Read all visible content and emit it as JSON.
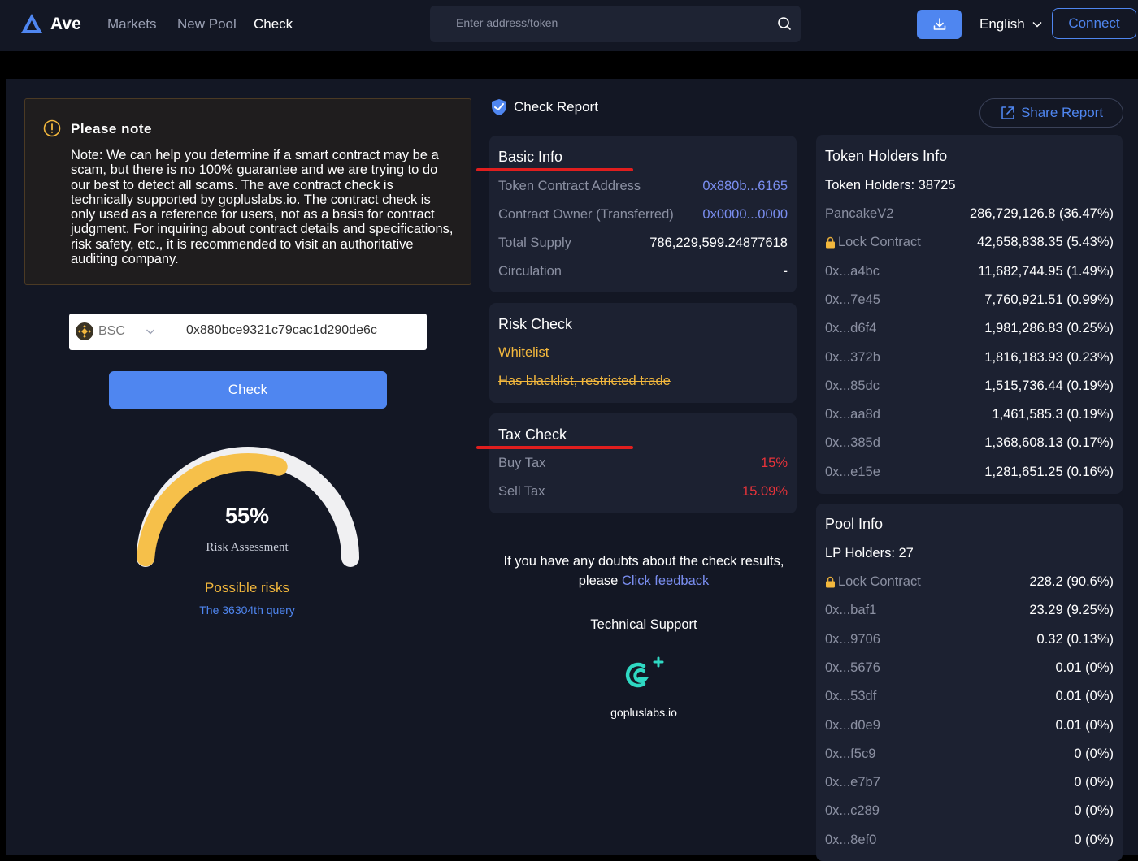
{
  "nav": {
    "brand": "Ave",
    "links": [
      "Markets",
      "New Pool",
      "Check"
    ],
    "search_placeholder": "Enter address/token",
    "language": "English",
    "connect": "Connect"
  },
  "note": {
    "title": "Please note",
    "body": "Note: We can help you determine if a smart contract may be a scam, but there is no 100% guarantee and we are trying to do our best to detect all scams. The ave contract check is technically supported by gopluslabs.io. The contract check is only used as a reference for users, not as a basis for contract judgment. For inquiring about contract details and specifications, risk safety, etc., it is recommended to visit an authoritative auditing company."
  },
  "query": {
    "chain": "BSC",
    "address": "0x880bce9321c79cac1d290de6c",
    "check_button": "Check"
  },
  "risk": {
    "percent_text": "55%",
    "percent": 55,
    "label": "Risk Assessment",
    "status": "Possible risks",
    "query_count": "The 36304th query"
  },
  "report": {
    "title": "Check Report",
    "share": "Share Report",
    "basic": {
      "title": "Basic Info",
      "rows": [
        {
          "label": "Token Contract Address",
          "value": "0x880b...6165"
        },
        {
          "label": "Contract Owner (Transferred)",
          "value": "0x0000...0000"
        },
        {
          "label": "Total Supply",
          "value": "786,229,599.24877618"
        },
        {
          "label": "Circulation",
          "value": "-"
        }
      ]
    },
    "risk_check": {
      "title": "Risk Check",
      "items": [
        "Whitelist",
        "Has blacklist, restricted trade"
      ]
    },
    "tax": {
      "title": "Tax Check",
      "rows": [
        {
          "label": "Buy Tax",
          "value": "15%"
        },
        {
          "label": "Sell Tax",
          "value": "15.09%"
        }
      ]
    },
    "doubts_text": "If you have any doubts about the check results, please ",
    "feedback_link": "Click feedback",
    "tech_support": "Technical Support",
    "goplus": "gopluslabs.io"
  },
  "holders": {
    "title": "Token Holders Info",
    "summary": "Token Holders: 38725",
    "rows": [
      {
        "label": "PancakeV2",
        "value": "286,729,126.8 (36.47%)"
      },
      {
        "label": "Lock Contract",
        "value": "42,658,838.35 (5.43%)",
        "locked": true
      },
      {
        "label": "0x...a4bc",
        "value": "11,682,744.95 (1.49%)"
      },
      {
        "label": "0x...7e45",
        "value": "7,760,921.51 (0.99%)"
      },
      {
        "label": "0x...d6f4",
        "value": "1,981,286.83 (0.25%)"
      },
      {
        "label": "0x...372b",
        "value": "1,816,183.93 (0.23%)"
      },
      {
        "label": "0x...85dc",
        "value": "1,515,736.44 (0.19%)"
      },
      {
        "label": "0x...aa8d",
        "value": "1,461,585.3 (0.19%)"
      },
      {
        "label": "0x...385d",
        "value": "1,368,608.13 (0.17%)"
      },
      {
        "label": "0x...e15e",
        "value": "1,281,651.25 (0.16%)"
      }
    ]
  },
  "pool": {
    "title": "Pool Info",
    "summary": "LP Holders: 27",
    "rows": [
      {
        "label": "Lock Contract",
        "value": "228.2 (90.6%)",
        "locked": true
      },
      {
        "label": "0x...baf1",
        "value": "23.29 (9.25%)"
      },
      {
        "label": "0x...9706",
        "value": "0.32 (0.13%)"
      },
      {
        "label": "0x...5676",
        "value": "0.01 (0%)"
      },
      {
        "label": "0x...53df",
        "value": "0.01 (0%)"
      },
      {
        "label": "0x...d0e9",
        "value": "0.01 (0%)"
      },
      {
        "label": "0x...f5c9",
        "value": "0 (0%)"
      },
      {
        "label": "0x...e7b7",
        "value": "0 (0%)"
      },
      {
        "label": "0x...c289",
        "value": "0 (0%)"
      },
      {
        "label": "0x...8ef0",
        "value": "0 (0%)"
      }
    ]
  },
  "colors": {
    "accent": "#4f86f0",
    "warning": "#f3b83d",
    "danger": "#e8333a",
    "bg": "#131724",
    "card": "#1c2131"
  }
}
